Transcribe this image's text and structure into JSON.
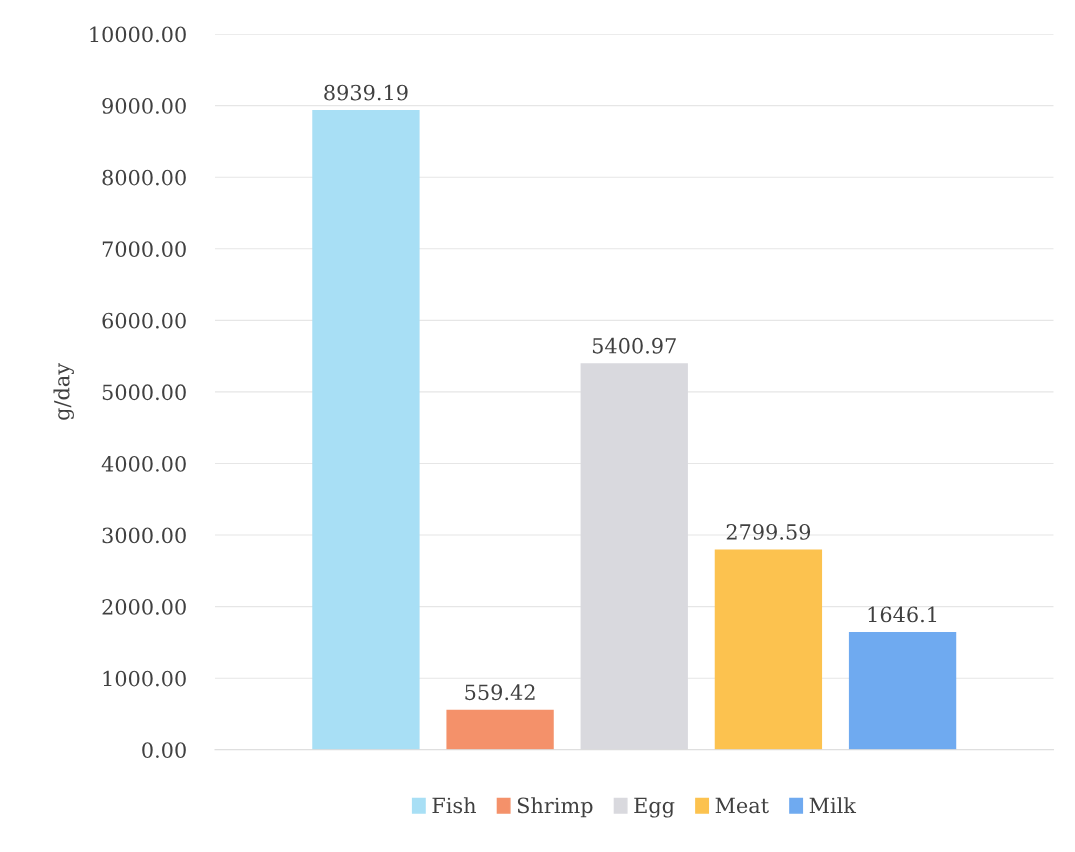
{
  "chart_data": {
    "type": "bar",
    "ylabel": "g/day",
    "categories": [
      null
    ],
    "series": [
      {
        "name": "Fish",
        "color": "#a8dff5",
        "values": [
          8939.19
        ]
      },
      {
        "name": "Shrimp",
        "color": "#f4916a",
        "values": [
          559.42
        ]
      },
      {
        "name": "Egg",
        "color": "#d9d9de",
        "values": [
          5400.97
        ]
      },
      {
        "name": "Meat",
        "color": "#fcc24f",
        "values": [
          2799.59
        ]
      },
      {
        "name": "Milk",
        "color": "#6faaf0",
        "values": [
          1646.1
        ]
      }
    ],
    "ylim": [
      0,
      10000
    ],
    "yticks": [
      {
        "value": 0,
        "label": "0.00"
      },
      {
        "value": 1000,
        "label": "1000.00"
      },
      {
        "value": 2000,
        "label": "2000.00"
      },
      {
        "value": 3000,
        "label": "3000.00"
      },
      {
        "value": 4000,
        "label": "4000.00"
      },
      {
        "value": 5000,
        "label": "5000.00"
      },
      {
        "value": 6000,
        "label": "6000.00"
      },
      {
        "value": 7000,
        "label": "7000.00"
      },
      {
        "value": 8000,
        "label": "8000.00"
      },
      {
        "value": 9000,
        "label": "9000.00"
      },
      {
        "value": 10000,
        "label": "10000.00"
      }
    ],
    "grid": "y",
    "legend": "bottom",
    "data_labels": true
  }
}
